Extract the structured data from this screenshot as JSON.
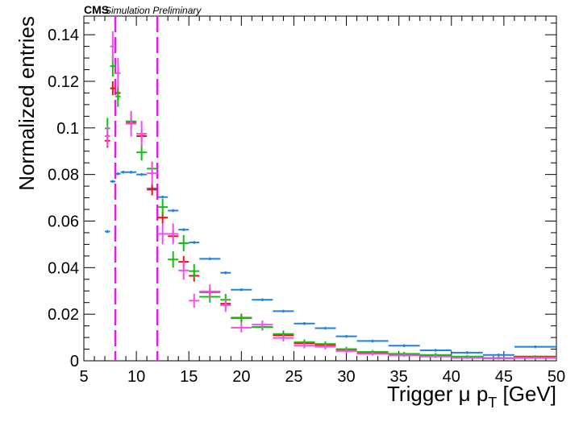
{
  "chart_data": {
    "type": "scatter",
    "title": "",
    "labels": {
      "experiment": "CMS",
      "status": "Simulation Preliminary"
    },
    "xlabel_parts": {
      "main": "Trigger μ p",
      "sub": "T",
      "unit": " [GeV]"
    },
    "ylabel": "Normalized entries",
    "xlim": [
      5,
      50
    ],
    "ylim": [
      0,
      0.148
    ],
    "xticks": [
      5,
      10,
      15,
      20,
      25,
      30,
      35,
      40,
      45,
      50
    ],
    "xtick_labels": [
      "5",
      "10",
      "15",
      "20",
      "25",
      "30",
      "35",
      "40",
      "45",
      "50"
    ],
    "yticks": [
      0,
      0.02,
      0.04,
      0.06,
      0.08,
      0.1,
      0.12,
      0.14
    ],
    "ytick_labels": [
      "0",
      "0.02",
      "0.04",
      "0.06",
      "0.08",
      "0.1",
      "0.12",
      "0.14"
    ],
    "cut_lines": {
      "x": [
        8,
        12
      ],
      "color": "#e020e0"
    },
    "grid": false,
    "series": [
      {
        "color": "#2080e0",
        "points": [
          {
            "x": 7.25,
            "xerr": 0.25,
            "y": 0.0555,
            "yerr": 0.0006
          },
          {
            "x": 7.75,
            "xerr": 0.25,
            "y": 0.077,
            "yerr": 0.0006
          },
          {
            "x": 8.25,
            "xerr": 0.25,
            "y": 0.0803,
            "yerr": 0.0006
          },
          {
            "x": 8.75,
            "xerr": 0.25,
            "y": 0.081,
            "yerr": 0.0006
          },
          {
            "x": 9.5,
            "xerr": 0.5,
            "y": 0.081,
            "yerr": 0.0006
          },
          {
            "x": 10.5,
            "xerr": 0.5,
            "y": 0.08,
            "yerr": 0.0006
          },
          {
            "x": 11.5,
            "xerr": 0.5,
            "y": 0.074,
            "yerr": 0.0006
          },
          {
            "x": 12.5,
            "xerr": 0.5,
            "y": 0.0703,
            "yerr": 0.0006
          },
          {
            "x": 13.5,
            "xerr": 0.5,
            "y": 0.0645,
            "yerr": 0.0006
          },
          {
            "x": 14.5,
            "xerr": 0.5,
            "y": 0.0563,
            "yerr": 0.0006
          },
          {
            "x": 15.5,
            "xerr": 0.5,
            "y": 0.0508,
            "yerr": 0.0006
          },
          {
            "x": 17,
            "xerr": 1,
            "y": 0.0438,
            "yerr": 0.0006
          },
          {
            "x": 18.5,
            "xerr": 0.5,
            "y": 0.0378,
            "yerr": 0.0006
          },
          {
            "x": 20,
            "xerr": 1,
            "y": 0.0305,
            "yerr": 0.0006
          },
          {
            "x": 22,
            "xerr": 1,
            "y": 0.0262,
            "yerr": 0.0006
          },
          {
            "x": 24,
            "xerr": 1,
            "y": 0.0213,
            "yerr": 0.0006
          },
          {
            "x": 26,
            "xerr": 1,
            "y": 0.016,
            "yerr": 0.0006
          },
          {
            "x": 28,
            "xerr": 1,
            "y": 0.014,
            "yerr": 0.0006
          },
          {
            "x": 30,
            "xerr": 1,
            "y": 0.0105,
            "yerr": 0.0006
          },
          {
            "x": 32.5,
            "xerr": 1.5,
            "y": 0.0085,
            "yerr": 0.0006
          },
          {
            "x": 35.5,
            "xerr": 1.5,
            "y": 0.0065,
            "yerr": 0.0006
          },
          {
            "x": 38.5,
            "xerr": 1.5,
            "y": 0.0045,
            "yerr": 0.0006
          },
          {
            "x": 41.5,
            "xerr": 1.5,
            "y": 0.0035,
            "yerr": 0.0006
          },
          {
            "x": 44.5,
            "xerr": 1.5,
            "y": 0.0025,
            "yerr": 0.0006
          },
          {
            "x": 48,
            "xerr": 2,
            "y": 0.006,
            "yerr": 0.0006
          }
        ]
      },
      {
        "color": "#ee1010",
        "points": [
          {
            "x": 7.25,
            "xerr": 0.25,
            "y": 0.0945,
            "yerr": 0.003
          },
          {
            "x": 7.75,
            "xerr": 0.25,
            "y": 0.117,
            "yerr": 0.003
          },
          {
            "x": 8.25,
            "xerr": 0.25,
            "y": 0.115,
            "yerr": 0.003
          },
          {
            "x": 9.5,
            "xerr": 0.5,
            "y": 0.1025,
            "yerr": 0.0025
          },
          {
            "x": 10.5,
            "xerr": 0.5,
            "y": 0.0965,
            "yerr": 0.0025
          },
          {
            "x": 11.5,
            "xerr": 0.5,
            "y": 0.0735,
            "yerr": 0.0025
          },
          {
            "x": 12.5,
            "xerr": 0.5,
            "y": 0.0615,
            "yerr": 0.0025
          },
          {
            "x": 13.5,
            "xerr": 0.5,
            "y": 0.0535,
            "yerr": 0.0025
          },
          {
            "x": 14.5,
            "xerr": 0.5,
            "y": 0.0425,
            "yerr": 0.0025
          },
          {
            "x": 15.5,
            "xerr": 0.5,
            "y": 0.0365,
            "yerr": 0.0025
          },
          {
            "x": 17,
            "xerr": 1,
            "y": 0.0295,
            "yerr": 0.0015
          },
          {
            "x": 18.5,
            "xerr": 0.5,
            "y": 0.0245,
            "yerr": 0.0015
          },
          {
            "x": 20,
            "xerr": 1,
            "y": 0.0185,
            "yerr": 0.0015
          },
          {
            "x": 22,
            "xerr": 1,
            "y": 0.0145,
            "yerr": 0.0012
          },
          {
            "x": 24,
            "xerr": 1,
            "y": 0.011,
            "yerr": 0.0012
          },
          {
            "x": 26,
            "xerr": 1,
            "y": 0.0075,
            "yerr": 0.001
          },
          {
            "x": 28,
            "xerr": 1,
            "y": 0.0068,
            "yerr": 0.001
          },
          {
            "x": 30,
            "xerr": 1,
            "y": 0.0045,
            "yerr": 0.0008
          },
          {
            "x": 32.5,
            "xerr": 1.5,
            "y": 0.0035,
            "yerr": 0.0006
          },
          {
            "x": 35.5,
            "xerr": 1.5,
            "y": 0.0028,
            "yerr": 0.0006
          },
          {
            "x": 38.5,
            "xerr": 1.5,
            "y": 0.0022,
            "yerr": 0.0006
          },
          {
            "x": 41.5,
            "xerr": 1.5,
            "y": 0.0016,
            "yerr": 0.0005
          },
          {
            "x": 44.5,
            "xerr": 1.5,
            "y": 0.0012,
            "yerr": 0.0005
          },
          {
            "x": 48,
            "xerr": 2,
            "y": 0.0018,
            "yerr": 0.0005
          }
        ]
      },
      {
        "color": "#10c010",
        "points": [
          {
            "x": 7.25,
            "xerr": 0.25,
            "y": 0.0998,
            "yerr": 0.0045
          },
          {
            "x": 7.75,
            "xerr": 0.25,
            "y": 0.1265,
            "yerr": 0.0045
          },
          {
            "x": 8.25,
            "xerr": 0.25,
            "y": 0.1135,
            "yerr": 0.0045
          },
          {
            "x": 9.5,
            "xerr": 0.5,
            "y": 0.1028,
            "yerr": 0.0035
          },
          {
            "x": 10.5,
            "xerr": 0.5,
            "y": 0.0895,
            "yerr": 0.0035
          },
          {
            "x": 11.5,
            "xerr": 0.5,
            "y": 0.0825,
            "yerr": 0.003
          },
          {
            "x": 12.5,
            "xerr": 0.5,
            "y": 0.066,
            "yerr": 0.0035
          },
          {
            "x": 13.5,
            "xerr": 0.5,
            "y": 0.0435,
            "yerr": 0.0035
          },
          {
            "x": 14.5,
            "xerr": 0.5,
            "y": 0.0505,
            "yerr": 0.0035
          },
          {
            "x": 15.5,
            "xerr": 0.5,
            "y": 0.0385,
            "yerr": 0.003
          },
          {
            "x": 17,
            "xerr": 1,
            "y": 0.0275,
            "yerr": 0.0025
          },
          {
            "x": 18.5,
            "xerr": 0.5,
            "y": 0.0262,
            "yerr": 0.0025
          },
          {
            "x": 20,
            "xerr": 1,
            "y": 0.0183,
            "yerr": 0.002
          },
          {
            "x": 22,
            "xerr": 1,
            "y": 0.0145,
            "yerr": 0.0015
          },
          {
            "x": 24,
            "xerr": 1,
            "y": 0.0115,
            "yerr": 0.0015
          },
          {
            "x": 26,
            "xerr": 1,
            "y": 0.008,
            "yerr": 0.0012
          },
          {
            "x": 28,
            "xerr": 1,
            "y": 0.0072,
            "yerr": 0.0012
          },
          {
            "x": 30,
            "xerr": 1,
            "y": 0.005,
            "yerr": 0.001
          },
          {
            "x": 32.5,
            "xerr": 1.5,
            "y": 0.0038,
            "yerr": 0.0008
          },
          {
            "x": 35.5,
            "xerr": 1.5,
            "y": 0.003,
            "yerr": 0.0008
          },
          {
            "x": 38.5,
            "xerr": 1.5,
            "y": 0.0025,
            "yerr": 0.0008
          },
          {
            "x": 41.5,
            "xerr": 1.5,
            "y": 0.0018,
            "yerr": 0.0006
          },
          {
            "x": 44.5,
            "xerr": 1.5,
            "y": 0.0012,
            "yerr": 0.0006
          },
          {
            "x": 48,
            "xerr": 2,
            "y": 0.0015,
            "yerr": 0.0006
          }
        ]
      },
      {
        "color": "#f050f0",
        "points": [
          {
            "x": 7.25,
            "xerr": 0.25,
            "y": 0.0965,
            "yerr": 0.0045
          },
          {
            "x": 7.75,
            "xerr": 0.25,
            "y": 0.135,
            "yerr": 0.0065
          },
          {
            "x": 8.25,
            "xerr": 0.25,
            "y": 0.1235,
            "yerr": 0.0065
          },
          {
            "x": 9.5,
            "xerr": 0.5,
            "y": 0.1018,
            "yerr": 0.0055
          },
          {
            "x": 10.5,
            "xerr": 0.5,
            "y": 0.0975,
            "yerr": 0.0055
          },
          {
            "x": 11.5,
            "xerr": 0.5,
            "y": 0.0805,
            "yerr": 0.005
          },
          {
            "x": 12.5,
            "xerr": 0.5,
            "y": 0.0545,
            "yerr": 0.0045
          },
          {
            "x": 13.5,
            "xerr": 0.5,
            "y": 0.0545,
            "yerr": 0.0045
          },
          {
            "x": 14.5,
            "xerr": 0.5,
            "y": 0.0388,
            "yerr": 0.004
          },
          {
            "x": 15.5,
            "xerr": 0.5,
            "y": 0.0258,
            "yerr": 0.003
          },
          {
            "x": 17,
            "xerr": 1,
            "y": 0.0298,
            "yerr": 0.003
          },
          {
            "x": 18.5,
            "xerr": 0.5,
            "y": 0.0238,
            "yerr": 0.0028
          },
          {
            "x": 20,
            "xerr": 1,
            "y": 0.0142,
            "yerr": 0.002
          },
          {
            "x": 22,
            "xerr": 1,
            "y": 0.0155,
            "yerr": 0.0018
          },
          {
            "x": 24,
            "xerr": 1,
            "y": 0.0098,
            "yerr": 0.0015
          },
          {
            "x": 26,
            "xerr": 1,
            "y": 0.0065,
            "yerr": 0.0012
          },
          {
            "x": 28,
            "xerr": 1,
            "y": 0.006,
            "yerr": 0.0012
          },
          {
            "x": 30,
            "xerr": 1,
            "y": 0.0042,
            "yerr": 0.001
          },
          {
            "x": 32.5,
            "xerr": 1.5,
            "y": 0.003,
            "yerr": 0.0008
          },
          {
            "x": 35.5,
            "xerr": 1.5,
            "y": 0.0023,
            "yerr": 0.0007
          },
          {
            "x": 38.5,
            "xerr": 1.5,
            "y": 0.0018,
            "yerr": 0.0006
          },
          {
            "x": 41.5,
            "xerr": 1.5,
            "y": 0.0013,
            "yerr": 0.0005
          },
          {
            "x": 44.5,
            "xerr": 1.5,
            "y": 0.001,
            "yerr": 0.0005
          },
          {
            "x": 48,
            "xerr": 2,
            "y": 0.0012,
            "yerr": 0.0005
          }
        ]
      }
    ]
  }
}
